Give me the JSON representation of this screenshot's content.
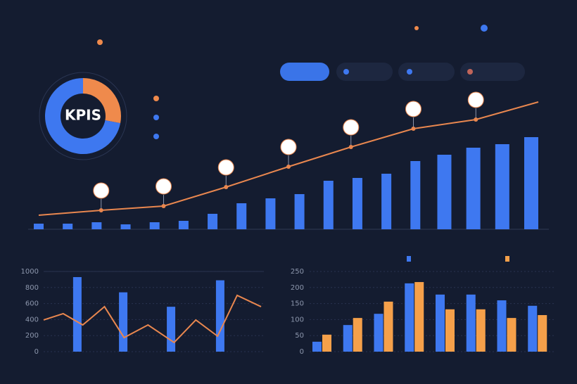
{
  "donut": {
    "type": "pie",
    "center_label": "KPIS",
    "values": [
      28,
      72
    ],
    "colors": [
      "#ef8a4c",
      "#3e78f0"
    ]
  },
  "top_chart": {
    "type": "bar_line",
    "bar_color": "#3e78f0",
    "line_color": "#e9874f",
    "bars": [
      8,
      8,
      10,
      7,
      10,
      12,
      22,
      37,
      44,
      50,
      69,
      73,
      79,
      97,
      106,
      116,
      121,
      131
    ],
    "line": [
      20,
      27,
      33,
      60,
      89,
      117,
      143,
      156,
      181
    ],
    "ylim": [
      0,
      140
    ]
  },
  "bottom_left": {
    "type": "bar_line",
    "bar_color": "#3e78f0",
    "line_color": "#e9874f",
    "xlim": [
      0,
      10
    ],
    "bar_x": [
      1.55,
      3.66,
      5.86,
      8.12
    ],
    "bars": [
      930,
      740,
      560,
      890
    ],
    "line_x": [
      0,
      0.9,
      1.8,
      2.8,
      3.7,
      4.8,
      6,
      7,
      8,
      8.9,
      10
    ],
    "line": [
      395,
      474,
      333,
      561,
      175,
      333,
      114,
      395,
      193,
      702,
      561
    ],
    "ylim": [
      0,
      1000
    ],
    "yticks": [
      0,
      200,
      400,
      600,
      800,
      1000
    ]
  },
  "bottom_right": {
    "type": "grouped_bar",
    "series": [
      {
        "color": "#3e78f0",
        "values": [
          31,
          83,
          118,
          213,
          178,
          178,
          160,
          143
        ]
      },
      {
        "color": "#f5a04a",
        "values": [
          53,
          105,
          156,
          217,
          132,
          132,
          105,
          114
        ]
      }
    ],
    "ylim": [
      0,
      250
    ],
    "yticks": [
      0,
      50,
      100,
      150,
      200,
      250
    ]
  }
}
